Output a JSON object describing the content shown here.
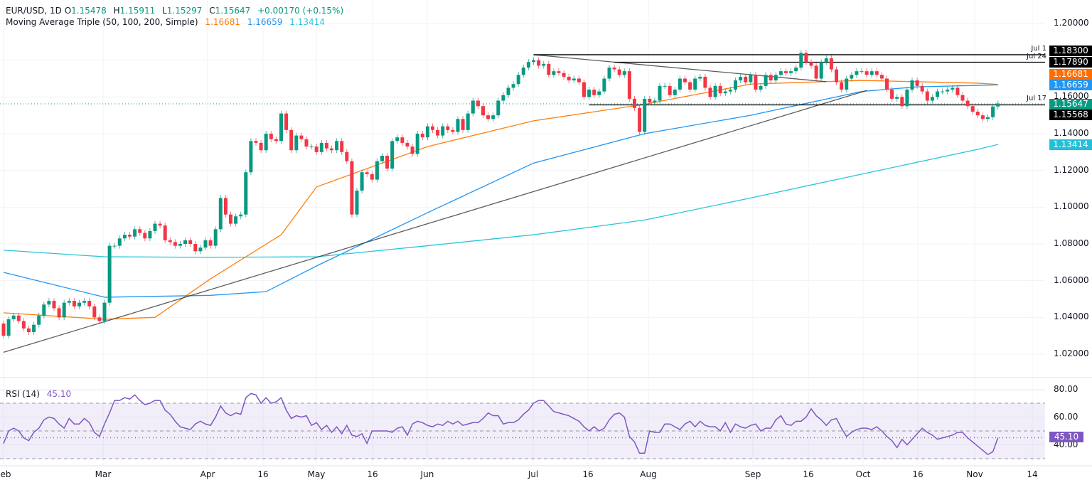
{
  "header": {
    "symbol": "EUR/USD, 1D",
    "o_label": "O",
    "open": "1.15478",
    "h_label": "H",
    "high": "1.15911",
    "l_label": "L",
    "low": "1.15297",
    "c_label": "C",
    "close": "1.15647",
    "change": "+0.00170 (+0.15%)",
    "ma_title": "Moving Average Triple (50, 100, 200, Simple)",
    "ma50": "1.16681",
    "ma100": "1.16659",
    "ma200": "1.13414"
  },
  "colors": {
    "up": "#089981",
    "down": "#F23645",
    "ma50": "#FF7F0E",
    "ma100": "#2196F3",
    "ma200": "#26C6DA",
    "rsi": "#7E57C2",
    "level": "#000000"
  },
  "price_axis": [
    "1.20000",
    "1.16000",
    "1.14000",
    "1.12000",
    "1.10000",
    "1.08000",
    "1.06000",
    "1.04000",
    "1.02000"
  ],
  "price_tags": [
    {
      "text": "1.18300",
      "color": "#000000"
    },
    {
      "text": "1.17890",
      "color": "#000000"
    },
    {
      "text": "1.16681",
      "color": "#FF6D00"
    },
    {
      "text": "1.16659",
      "color": "#2196F3"
    },
    {
      "text": "1.15647",
      "color": "#089981"
    },
    {
      "text": "1.15568",
      "color": "#000000"
    },
    {
      "text": "1.13414",
      "color": "#22C0D8"
    }
  ],
  "time_axis": [
    "eb",
    "Mar",
    "Apr",
    "16",
    "May",
    "16",
    "Jun",
    "Jul",
    "16",
    "Aug",
    "Sep",
    "16",
    "Oct",
    "16",
    "Nov",
    "14"
  ],
  "rsi": {
    "title": "RSI (14)",
    "value": "45.10",
    "axis": [
      "80.00",
      "60.00",
      "40.00"
    ],
    "upper": 70,
    "middle": 50,
    "lower": 30
  },
  "chart_data": {
    "type": "candlestick",
    "title": "EUR/USD, 1D",
    "ylim": [
      1.0,
      1.2
    ],
    "first_open": 1.0367,
    "close": [
      1.03,
      1.039,
      1.041,
      1.038,
      1.034,
      1.032,
      1.036,
      1.041,
      1.047,
      1.049,
      1.045,
      1.04,
      1.048,
      1.049,
      1.046,
      1.048,
      1.049,
      1.046,
      1.04,
      1.038,
      1.048,
      1.079,
      1.079,
      1.083,
      1.085,
      1.084,
      1.088,
      1.086,
      1.083,
      1.087,
      1.091,
      1.09,
      1.082,
      1.081,
      1.079,
      1.08,
      1.082,
      1.08,
      1.076,
      1.078,
      1.082,
      1.079,
      1.088,
      1.105,
      1.096,
      1.091,
      1.095,
      1.096,
      1.119,
      1.136,
      1.135,
      1.131,
      1.14,
      1.137,
      1.136,
      1.151,
      1.142,
      1.131,
      1.139,
      1.137,
      1.133,
      1.133,
      1.13,
      1.135,
      1.132,
      1.131,
      1.136,
      1.13,
      1.125,
      1.096,
      1.109,
      1.119,
      1.118,
      1.115,
      1.125,
      1.128,
      1.121,
      1.136,
      1.138,
      1.135,
      1.133,
      1.129,
      1.14,
      1.138,
      1.144,
      1.142,
      1.139,
      1.144,
      1.142,
      1.141,
      1.148,
      1.142,
      1.151,
      1.158,
      1.155,
      1.15,
      1.148,
      1.15,
      1.158,
      1.161,
      1.165,
      1.167,
      1.172,
      1.176,
      1.179,
      1.18,
      1.177,
      1.178,
      1.172,
      1.174,
      1.173,
      1.171,
      1.169,
      1.17,
      1.168,
      1.16,
      1.164,
      1.161,
      1.163,
      1.17,
      1.176,
      1.175,
      1.172,
      1.174,
      1.159,
      1.154,
      1.141,
      1.159,
      1.157,
      1.158,
      1.166,
      1.166,
      1.161,
      1.164,
      1.17,
      1.168,
      1.164,
      1.17,
      1.171,
      1.165,
      1.16,
      1.166,
      1.162,
      1.163,
      1.164,
      1.169,
      1.171,
      1.168,
      1.172,
      1.164,
      1.166,
      1.172,
      1.169,
      1.172,
      1.174,
      1.173,
      1.174,
      1.176,
      1.184,
      1.179,
      1.177,
      1.17,
      1.179,
      1.181,
      1.175,
      1.168,
      1.164,
      1.17,
      1.172,
      1.174,
      1.174,
      1.172,
      1.174,
      1.172,
      1.17,
      1.164,
      1.159,
      1.16,
      1.155,
      1.164,
      1.169,
      1.166,
      1.163,
      1.158,
      1.16,
      1.163,
      1.163,
      1.164,
      1.165,
      1.161,
      1.158,
      1.155,
      1.152,
      1.15,
      1.148,
      1.149,
      1.1548,
      1.15647
    ],
    "moving_averages": [
      {
        "name": "50",
        "color": "#FF7F0E",
        "points": [
          [
            0,
            1.0425
          ],
          [
            20,
            1.039
          ],
          [
            30,
            1.04
          ],
          [
            41,
            1.061
          ],
          [
            55,
            1.085
          ],
          [
            62,
            1.111
          ],
          [
            84,
            1.133
          ],
          [
            105,
            1.147
          ],
          [
            127,
            1.156
          ],
          [
            148,
            1.167
          ],
          [
            170,
            1.169
          ],
          [
            193,
            1.1675
          ],
          [
            197,
            1.16681
          ]
        ]
      },
      {
        "name": "100",
        "color": "#2196F3",
        "points": [
          [
            0,
            1.0645
          ],
          [
            20,
            1.051
          ],
          [
            41,
            1.052
          ],
          [
            52,
            1.054
          ],
          [
            62,
            1.068
          ],
          [
            84,
            1.097
          ],
          [
            105,
            1.124
          ],
          [
            127,
            1.14
          ],
          [
            148,
            1.15
          ],
          [
            170,
            1.163
          ],
          [
            181,
            1.1655
          ],
          [
            193,
            1.1663
          ],
          [
            197,
            1.16659
          ]
        ]
      },
      {
        "name": "200",
        "color": "#26C6DA",
        "points": [
          [
            0,
            1.0766
          ],
          [
            20,
            1.073
          ],
          [
            41,
            1.0727
          ],
          [
            62,
            1.073
          ],
          [
            84,
            1.079
          ],
          [
            105,
            1.085
          ],
          [
            127,
            1.093
          ],
          [
            148,
            1.105
          ],
          [
            170,
            1.118
          ],
          [
            193,
            1.1315
          ],
          [
            197,
            1.13414
          ]
        ]
      }
    ],
    "trendlines": [
      {
        "from": [
          0,
          1.021
        ],
        "to": [
          171,
          1.1635
        ]
      },
      {
        "from": [
          105,
          1.183
        ],
        "to": [
          163,
          1.1683
        ]
      }
    ],
    "levels": [
      {
        "label": "Jul 1",
        "price": 1.183,
        "from": 105
      },
      {
        "label": "Jul 24",
        "price": 1.1789,
        "from": 121
      },
      {
        "label": "Jul 17",
        "price": 1.15568,
        "from": 116
      }
    ],
    "rsi_values": [
      41,
      50,
      52,
      50,
      45,
      43,
      49,
      52,
      58,
      60,
      59,
      55,
      52,
      59,
      55,
      55,
      59,
      56,
      49,
      46,
      55,
      63,
      72,
      72,
      74,
      73,
      76,
      72,
      69,
      70,
      72,
      72,
      65,
      62,
      57,
      53,
      52,
      51,
      55,
      57,
      55,
      54,
      60,
      68,
      63,
      61,
      63,
      62,
      74,
      77,
      76,
      70,
      74,
      70,
      71,
      74,
      65,
      59,
      61,
      60,
      61,
      54,
      56,
      51,
      54,
      49,
      53,
      48,
      54,
      47,
      46,
      48,
      41,
      50,
      50,
      50,
      50,
      49,
      52,
      53,
      47,
      55,
      57,
      56,
      54,
      53,
      55,
      54,
      57,
      55,
      57,
      54,
      55,
      56,
      56,
      59,
      63,
      61,
      61,
      55,
      56,
      56,
      58,
      62,
      65,
      70,
      72,
      72,
      68,
      64,
      63,
      62,
      61,
      59,
      57,
      53,
      50,
      53,
      50,
      52,
      58,
      62,
      63,
      60,
      46,
      42,
      34,
      34,
      50,
      49,
      49,
      55,
      55,
      53,
      51,
      55,
      57,
      53,
      57,
      54,
      53,
      53,
      50,
      56,
      49,
      55,
      53,
      52,
      54,
      55,
      50,
      52,
      52,
      58,
      61,
      55,
      54,
      57,
      57,
      60,
      66,
      61,
      58,
      54,
      58,
      59,
      52,
      46,
      49,
      51,
      52,
      52,
      51,
      53,
      50,
      46,
      43,
      38,
      44,
      40,
      44,
      48,
      52,
      49,
      47,
      44,
      45,
      46,
      47,
      49,
      49,
      45,
      42,
      39,
      36,
      33,
      35,
      45.1
    ]
  }
}
